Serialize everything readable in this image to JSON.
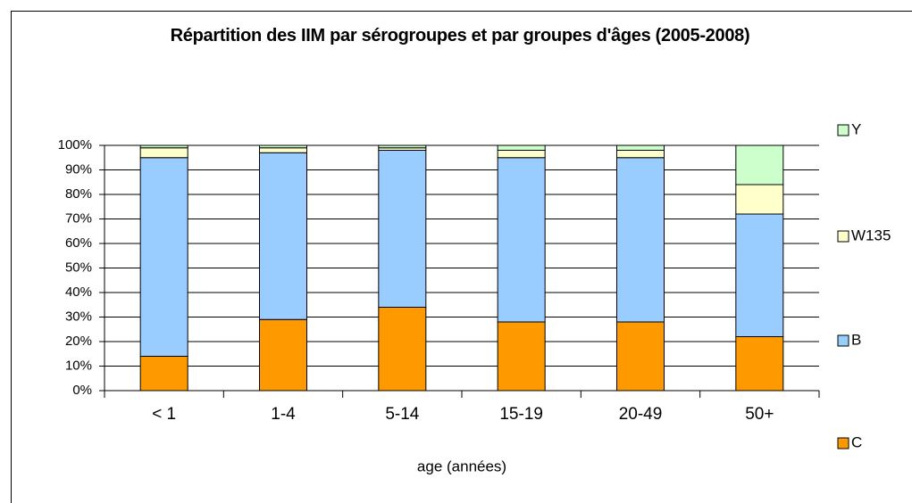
{
  "chart_data": {
    "type": "stacked_bar",
    "title": "Répartition des IIM par sérogroupes et par groupes d'âges (2005-2008)",
    "x_label": "age (années)",
    "categories": [
      "< 1",
      "1-4",
      "5-14",
      "15-19",
      "20-49",
      "50+"
    ],
    "series": [
      {
        "name": "C",
        "color": "#ff9900",
        "values": [
          14,
          29,
          34,
          28,
          28,
          22
        ]
      },
      {
        "name": "B",
        "color": "#99ccff",
        "values": [
          81,
          68,
          64,
          67,
          67,
          50
        ]
      },
      {
        "name": "W135",
        "color": "#ffffcc",
        "values": [
          4,
          2,
          1,
          3,
          3,
          12
        ]
      },
      {
        "name": "Y",
        "color": "#ccffcc",
        "values": [
          1,
          1,
          1,
          2,
          2,
          16
        ]
      }
    ],
    "ylim": [
      0,
      100
    ],
    "yticks": [
      {
        "value": 0,
        "label": "0%"
      },
      {
        "value": 10,
        "label": "10%"
      },
      {
        "value": 20,
        "label": "20%"
      },
      {
        "value": 30,
        "label": "30%"
      },
      {
        "value": 40,
        "label": "40%"
      },
      {
        "value": 50,
        "label": "50%"
      },
      {
        "value": 60,
        "label": "60%"
      },
      {
        "value": 70,
        "label": "70%"
      },
      {
        "value": 80,
        "label": "80%"
      },
      {
        "value": 90,
        "label": "90%"
      },
      {
        "value": 100,
        "label": "100%"
      }
    ],
    "grid": true,
    "legend": "right"
  }
}
